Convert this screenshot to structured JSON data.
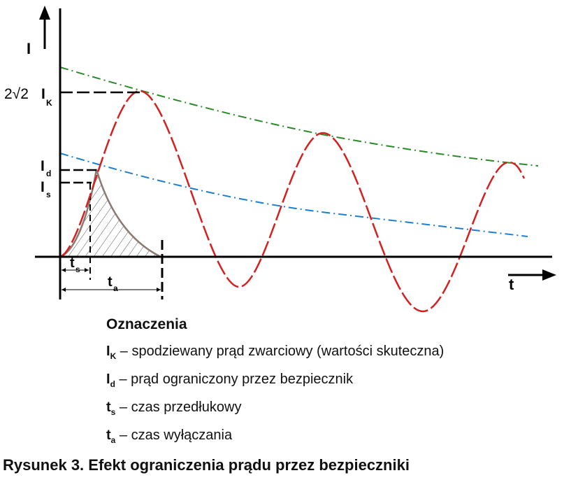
{
  "diagram": {
    "y_axis": {
      "label": "I"
    },
    "x_axis": {
      "label": "t"
    },
    "y_labels": {
      "peak_prefix": "2√2",
      "peak_symbol": "I",
      "peak_sub": "K",
      "cutoff_symbol": "I",
      "cutoff_sub": "d",
      "prearc_symbol": "I",
      "prearc_sub": "s"
    },
    "x_labels": {
      "prearc_time_symbol": "t",
      "prearc_time_sub": "s",
      "clearing_time_symbol": "t",
      "clearing_time_sub": "a"
    },
    "colors": {
      "prospective_current": "#d42020",
      "upper_envelope": "#2a8a2a",
      "lower_envelope": "#1e7fcf",
      "limited_current": "#8a7a72",
      "axes": "#000000"
    }
  },
  "legend": {
    "title": "Oznaczenia",
    "items": [
      {
        "symbol": "I",
        "sub": "K",
        "text": " – spodziewany prąd zwarciowy (wartości skuteczna)"
      },
      {
        "symbol": "I",
        "sub": "d",
        "text": " – prąd ograniczony przez bezpiecznik"
      },
      {
        "symbol": "t",
        "sub": "s",
        "text": " – czas przedłukowy"
      },
      {
        "symbol": "t",
        "sub": "a",
        "text": " – czas wyłączania"
      }
    ]
  },
  "caption": "Rysunek 3. Efekt ograniczenia prądu przez bezpieczniki"
}
